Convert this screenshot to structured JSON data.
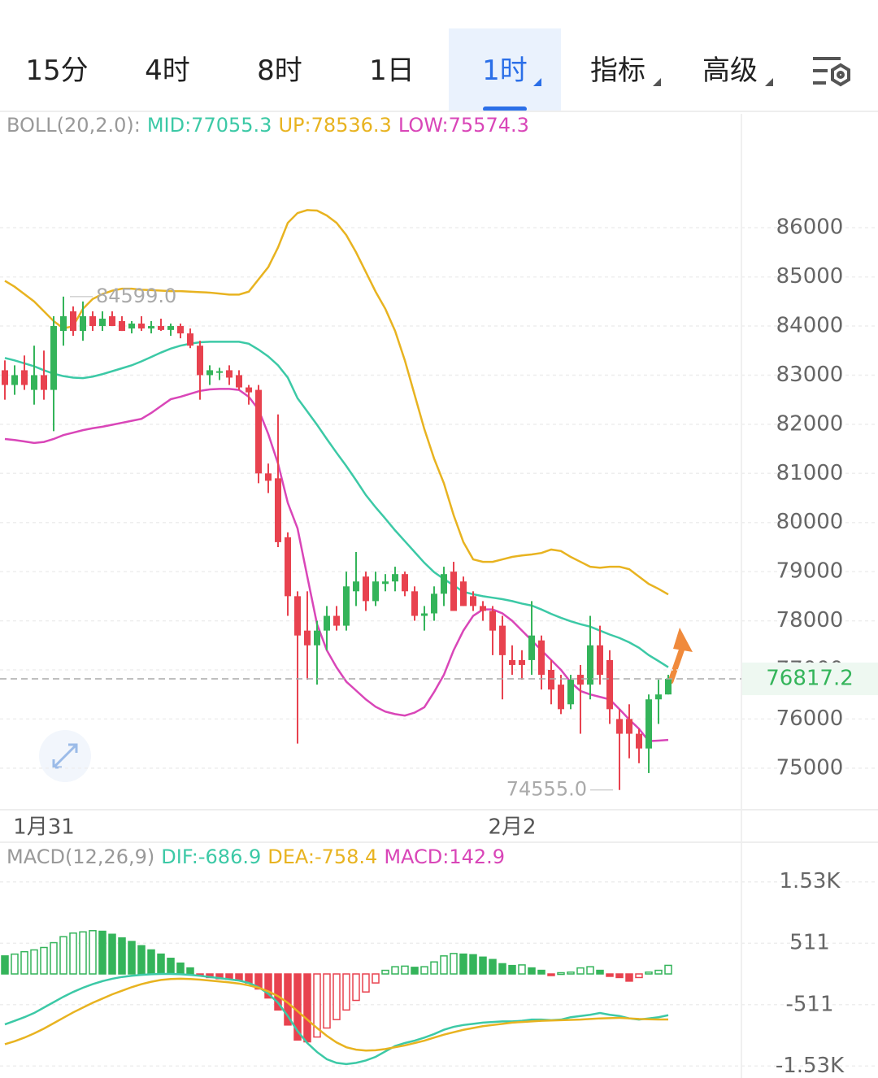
{
  "tabs": [
    "15分",
    "4时",
    "8时",
    "1日",
    "1时",
    "指标",
    "高级"
  ],
  "active_tab": 4,
  "chart_data": [
    {
      "type": "candlestick",
      "indicator_label": "BOLL(20,2.0):",
      "categories": [
        null,
        null,
        null,
        null,
        "1月31",
        null,
        null,
        null,
        null,
        null,
        null,
        null,
        null,
        null,
        null,
        null,
        null,
        null,
        null,
        null,
        null,
        null,
        null,
        null,
        null,
        null,
        null,
        null,
        null,
        null,
        null,
        null,
        null,
        null,
        null,
        null,
        null,
        null,
        null,
        null,
        null,
        null,
        null,
        null,
        null,
        null,
        null,
        null,
        null,
        null,
        null,
        null,
        "2月2",
        null,
        null,
        null,
        null,
        null,
        null,
        null,
        null,
        null,
        null,
        null,
        null,
        null,
        null,
        null,
        null
      ],
      "ohlc": [
        [
          83100,
          83300,
          82500,
          82800
        ],
        [
          82800,
          83200,
          82600,
          83000
        ],
        [
          83100,
          83400,
          82700,
          82800
        ],
        [
          82700,
          83600,
          82400,
          83000
        ],
        [
          83000,
          83500,
          82500,
          82700
        ],
        [
          82700,
          84200,
          81860,
          84000
        ],
        [
          83900,
          84599,
          83600,
          84200
        ],
        [
          84300,
          84400,
          83800,
          83900
        ],
        [
          83900,
          84500,
          83700,
          84200
        ],
        [
          84200,
          84300,
          83900,
          84000
        ],
        [
          84000,
          84300,
          83900,
          84150
        ],
        [
          84200,
          84300,
          84000,
          84000
        ],
        [
          84100,
          84200,
          83900,
          83900
        ],
        [
          83950,
          84100,
          83850,
          84050
        ],
        [
          84050,
          84200,
          83900,
          83950
        ],
        [
          83950,
          84100,
          83850,
          84000
        ],
        [
          84000,
          84150,
          83900,
          83920
        ],
        [
          83920,
          84050,
          83800,
          84000
        ],
        [
          84000,
          84050,
          83750,
          83850
        ],
        [
          83850,
          83950,
          83550,
          83600
        ],
        [
          83600,
          83700,
          82500,
          83000
        ],
        [
          83000,
          83200,
          82800,
          83100
        ],
        [
          83050,
          83150,
          82900,
          83080
        ],
        [
          83100,
          83200,
          82800,
          82950
        ],
        [
          83000,
          83100,
          82700,
          82750
        ],
        [
          82750,
          82800,
          82400,
          82650
        ],
        [
          82700,
          82800,
          80800,
          81000
        ],
        [
          81000,
          81200,
          80600,
          80850
        ],
        [
          80900,
          82200,
          79500,
          79600
        ],
        [
          79700,
          79800,
          78100,
          78500
        ],
        [
          78500,
          78600,
          75500,
          77700
        ],
        [
          77800,
          78600,
          76800,
          77500
        ],
        [
          77500,
          78000,
          76700,
          77800
        ],
        [
          77800,
          78300,
          77400,
          78100
        ],
        [
          78100,
          78300,
          77800,
          77900
        ],
        [
          77900,
          79000,
          77800,
          78700
        ],
        [
          78600,
          79400,
          78300,
          78800
        ],
        [
          78900,
          79000,
          78200,
          78400
        ],
        [
          78400,
          79000,
          78300,
          78800
        ],
        [
          78750,
          78950,
          78600,
          78800
        ],
        [
          78800,
          79100,
          78600,
          78950
        ],
        [
          78950,
          79000,
          78500,
          78600
        ],
        [
          78600,
          78700,
          78000,
          78100
        ],
        [
          78100,
          78300,
          77800,
          78150
        ],
        [
          78150,
          78700,
          78000,
          78550
        ],
        [
          78550,
          79100,
          78300,
          78950
        ],
        [
          79000,
          79200,
          78200,
          78200
        ],
        [
          78800,
          78900,
          78300,
          78300
        ],
        [
          78500,
          78600,
          78200,
          78300
        ],
        [
          78300,
          78400,
          78000,
          78200
        ],
        [
          78200,
          78300,
          77300,
          77800
        ],
        [
          77900,
          78100,
          76400,
          77300
        ],
        [
          77200,
          77500,
          76900,
          77100
        ],
        [
          77200,
          77400,
          76800,
          77100
        ],
        [
          77200,
          78400,
          76900,
          77700
        ],
        [
          77600,
          77700,
          76600,
          76900
        ],
        [
          77000,
          77200,
          76300,
          76600
        ],
        [
          76700,
          76900,
          76100,
          76200
        ],
        [
          76300,
          76900,
          76200,
          76800
        ],
        [
          76900,
          77100,
          75700,
          76700
        ],
        [
          76700,
          78100,
          76400,
          77500
        ],
        [
          77500,
          77900,
          76700,
          76900
        ],
        [
          77200,
          77400,
          75900,
          76200
        ],
        [
          76000,
          76200,
          74555,
          75700
        ],
        [
          76000,
          76300,
          75200,
          75700
        ],
        [
          75700,
          75800,
          75100,
          75400
        ],
        [
          75400,
          76500,
          74900,
          76400
        ],
        [
          76400,
          76800,
          75900,
          76500
        ],
        [
          76500,
          76900,
          76500,
          76817.2
        ]
      ],
      "up_color": "#34b45a",
      "down_color": "#e8424f",
      "high_label": "84599.0",
      "low_label": "74555.0",
      "last_label": "76817.2",
      "series": [
        {
          "name": "MID",
          "label": "MID:77055.3",
          "color": "#3cc9a6",
          "values": [
            83350,
            83300,
            83240,
            83180,
            83100,
            83030,
            82980,
            82950,
            82940,
            82970,
            83020,
            83080,
            83140,
            83200,
            83280,
            83370,
            83460,
            83540,
            83600,
            83640,
            83670,
            83680,
            83680,
            83680,
            83680,
            83640,
            83520,
            83380,
            83200,
            82950,
            82530,
            82260,
            81990,
            81700,
            81420,
            81150,
            80860,
            80560,
            80310,
            80080,
            79840,
            79620,
            79400,
            79180,
            78990,
            78850,
            78720,
            78590,
            78540,
            78500,
            78470,
            78440,
            78400,
            78350,
            78310,
            78230,
            78140,
            78060,
            77990,
            77930,
            77880,
            77800,
            77720,
            77650,
            77560,
            77450,
            77300,
            77180,
            77055.3
          ]
        },
        {
          "name": "UP",
          "label": "UP:78536.3",
          "color": "#e8b320",
          "values": [
            84920,
            84800,
            84650,
            84500,
            84300,
            84100,
            83950,
            84000,
            84350,
            84550,
            84650,
            84720,
            84760,
            84760,
            84740,
            84730,
            84720,
            84710,
            84710,
            84700,
            84690,
            84680,
            84660,
            84640,
            84640,
            84700,
            84950,
            85200,
            85600,
            86100,
            86300,
            86360,
            86350,
            86250,
            86100,
            85850,
            85500,
            85100,
            84700,
            84350,
            83900,
            83300,
            82600,
            81900,
            81300,
            80800,
            80150,
            79600,
            79250,
            79200,
            79200,
            79250,
            79300,
            79330,
            79350,
            79380,
            79450,
            79420,
            79300,
            79200,
            79100,
            79080,
            79100,
            79100,
            79050,
            78900,
            78750,
            78650,
            78536.3
          ]
        },
        {
          "name": "LOW",
          "label": "LOW:75574.3",
          "color": "#d946b8",
          "values": [
            81700,
            81680,
            81650,
            81620,
            81640,
            81700,
            81780,
            81830,
            81880,
            81920,
            81950,
            81990,
            82030,
            82070,
            82110,
            82230,
            82370,
            82510,
            82560,
            82620,
            82680,
            82710,
            82720,
            82720,
            82700,
            82560,
            82300,
            81800,
            81200,
            80400,
            79880,
            78900,
            77930,
            77400,
            77050,
            76760,
            76580,
            76400,
            76250,
            76150,
            76100,
            76070,
            76130,
            76240,
            76550,
            76900,
            77400,
            77800,
            78100,
            78230,
            78230,
            78150,
            78000,
            77800,
            77600,
            77400,
            77200,
            77000,
            76750,
            76570,
            76500,
            76450,
            76400,
            76200,
            75990,
            75800,
            75550,
            75560,
            75574.3
          ]
        }
      ],
      "ylim": [
        74170,
        88320
      ],
      "yticks": [
        75000,
        76000,
        77000,
        78000,
        79000,
        80000,
        81000,
        82000,
        83000,
        84000,
        85000,
        86000
      ],
      "grid": true
    },
    {
      "type": "macd",
      "indicator_label": "MACD(12,26,9)",
      "histogram": {
        "label": "MACD:142.9",
        "color": "#d946b8",
        "values": [
          300,
          330,
          370,
          400,
          440,
          520,
          620,
          680,
          700,
          720,
          710,
          660,
          600,
          540,
          470,
          400,
          330,
          260,
          180,
          100,
          -20,
          -60,
          -80,
          -90,
          -110,
          -150,
          -250,
          -400,
          -600,
          -850,
          -1100,
          -1130,
          -1050,
          -900,
          -760,
          -600,
          -440,
          -300,
          -150,
          60,
          120,
          130,
          110,
          120,
          200,
          300,
          340,
          330,
          320,
          280,
          240,
          170,
          140,
          150,
          100,
          60,
          -10,
          20,
          30,
          100,
          120,
          60,
          -40,
          -60,
          -120,
          -60,
          30,
          60,
          142.9
        ]
      },
      "series": [
        {
          "name": "DIF",
          "label": "DIF:-686.9",
          "color": "#3cc9a6",
          "values": [
            -840,
            -780,
            -720,
            -650,
            -560,
            -470,
            -380,
            -300,
            -230,
            -170,
            -120,
            -80,
            -50,
            -30,
            -15,
            -5,
            0,
            0,
            -5,
            -15,
            -30,
            -50,
            -70,
            -90,
            -110,
            -150,
            -220,
            -330,
            -480,
            -700,
            -950,
            -1150,
            -1300,
            -1420,
            -1480,
            -1500,
            -1480,
            -1440,
            -1380,
            -1290,
            -1200,
            -1150,
            -1110,
            -1060,
            -1000,
            -930,
            -880,
            -850,
            -830,
            -810,
            -800,
            -790,
            -790,
            -780,
            -760,
            -760,
            -770,
            -760,
            -720,
            -700,
            -680,
            -650,
            -680,
            -700,
            -740,
            -760,
            -740,
            -720,
            -686.9
          ]
        },
        {
          "name": "DEA",
          "label": "DEA:-758.4",
          "color": "#e8b320",
          "values": [
            -1170,
            -1120,
            -1060,
            -990,
            -910,
            -820,
            -730,
            -640,
            -560,
            -480,
            -410,
            -340,
            -280,
            -220,
            -170,
            -130,
            -100,
            -85,
            -80,
            -85,
            -95,
            -110,
            -125,
            -140,
            -160,
            -190,
            -230,
            -290,
            -370,
            -480,
            -620,
            -760,
            -900,
            -1030,
            -1140,
            -1220,
            -1260,
            -1275,
            -1270,
            -1250,
            -1220,
            -1190,
            -1150,
            -1110,
            -1060,
            -1010,
            -970,
            -930,
            -900,
            -870,
            -850,
            -830,
            -810,
            -800,
            -790,
            -780,
            -775,
            -770,
            -765,
            -760,
            -750,
            -740,
            -735,
            -730,
            -740,
            -750,
            -755,
            -757,
            -758.4
          ]
        }
      ],
      "ylim": [
        -1732,
        2138
      ],
      "yticks": [
        {
          "value": -1533,
          "label": "-1.53K"
        },
        -511,
        511,
        {
          "value": 1533,
          "label": "1.53K"
        }
      ],
      "grid": true
    }
  ]
}
